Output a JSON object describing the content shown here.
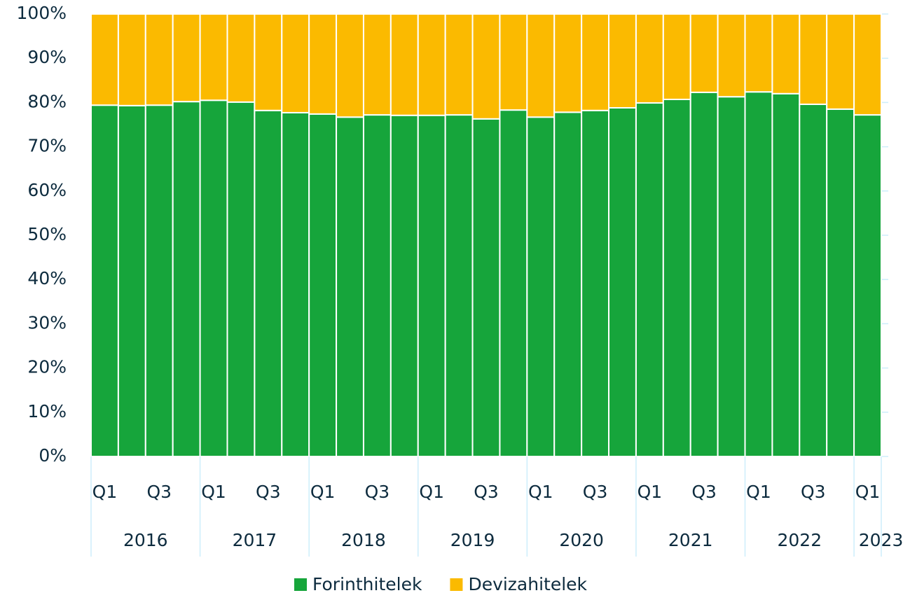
{
  "chart_data": {
    "type": "stacked_bar",
    "categories": [
      "Q1",
      null,
      "Q3",
      null,
      "Q1",
      null,
      "Q3",
      null,
      "Q1",
      null,
      "Q3",
      null,
      "Q1",
      null,
      "Q3",
      null,
      "Q1",
      null,
      "Q3",
      null,
      "Q1",
      null,
      "Q3",
      null,
      "Q1",
      null,
      "Q3",
      null,
      "Q1"
    ],
    "groups": [
      "2016",
      "2017",
      "2018",
      "2019",
      "2020",
      "2021",
      "2022",
      "2023"
    ],
    "series": [
      {
        "name": "Forinthitelek",
        "color": "#16a53b",
        "values": [
          79.4,
          79.3,
          79.4,
          80.2,
          80.5,
          80.1,
          78.2,
          77.7,
          77.4,
          76.7,
          77.2,
          77.1,
          77.1,
          77.2,
          76.3,
          78.3,
          76.7,
          77.8,
          78.2,
          78.8,
          79.9,
          80.7,
          82.3,
          81.3,
          82.4,
          82.0,
          79.6,
          78.5,
          77.2
        ]
      },
      {
        "name": "Devizahitelek",
        "color": "#fbba00",
        "values": [
          20.6,
          20.7,
          20.6,
          19.8,
          19.5,
          19.9,
          21.8,
          22.3,
          22.6,
          23.3,
          22.8,
          22.9,
          22.9,
          22.8,
          23.7,
          21.7,
          23.3,
          22.2,
          21.8,
          21.2,
          20.1,
          19.3,
          17.7,
          18.7,
          17.6,
          18.0,
          20.4,
          21.5,
          22.8
        ]
      }
    ],
    "ylim": [
      0,
      100
    ],
    "yticks": [
      {
        "value": 0,
        "label": "0%"
      },
      {
        "value": 10,
        "label": "10%"
      },
      {
        "value": 20,
        "label": "20%"
      },
      {
        "value": 30,
        "label": "30%"
      },
      {
        "value": 40,
        "label": "40%"
      },
      {
        "value": 50,
        "label": "50%"
      },
      {
        "value": 60,
        "label": "60%"
      },
      {
        "value": 70,
        "label": "70%"
      },
      {
        "value": 80,
        "label": "80%"
      },
      {
        "value": 90,
        "label": "90%"
      },
      {
        "value": 100,
        "label": "100%"
      }
    ],
    "grid": true,
    "legend": "bottom"
  }
}
